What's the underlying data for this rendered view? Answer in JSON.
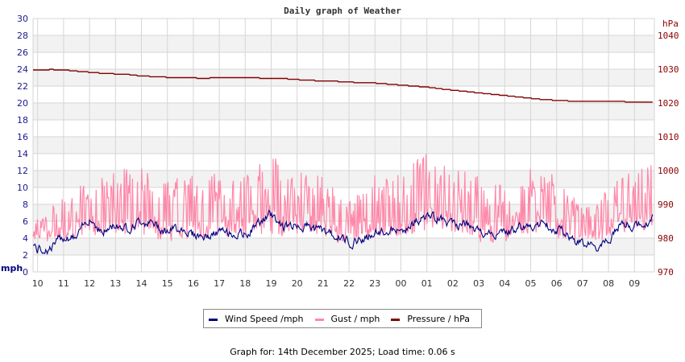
{
  "chart_data": {
    "type": "line",
    "title": "Daily graph of Weather",
    "xlabel": "",
    "ylabel": "mph",
    "ylabel_right": "hPa",
    "ylim": [
      0,
      30
    ],
    "ylim_right": [
      970,
      1045
    ],
    "grid": true,
    "legend_position": "bottom",
    "x_tick_labels": [
      "10",
      "11",
      "12",
      "13",
      "14",
      "15",
      "16",
      "17",
      "18",
      "19",
      "20",
      "21",
      "22",
      "23",
      "00",
      "01",
      "02",
      "03",
      "04",
      "05",
      "06",
      "07",
      "08",
      "09"
    ],
    "y_ticks_left": [
      0,
      2,
      4,
      6,
      8,
      10,
      12,
      14,
      16,
      18,
      20,
      22,
      24,
      26,
      28,
      30
    ],
    "y_ticks_right": [
      970,
      980,
      990,
      1000,
      1010,
      1020,
      1030,
      1040
    ],
    "hours_x": [
      9.8,
      10,
      10.5,
      11,
      11.5,
      12,
      12.5,
      13,
      13.5,
      14,
      14.5,
      15,
      15.5,
      16,
      16.5,
      17,
      17.5,
      18,
      18.5,
      19,
      19.5,
      20,
      20.5,
      21,
      21.5,
      22,
      22.5,
      23,
      23.5,
      24,
      24.5,
      25,
      25.5,
      26,
      26.5,
      27,
      27.5,
      28,
      28.5,
      29,
      29.5,
      30,
      30.5,
      31,
      31.5,
      32,
      32.5,
      33,
      33.5,
      33.7
    ],
    "series": [
      {
        "name": "Wind Speed /mph",
        "color": "#000080",
        "axis": "left",
        "values": [
          3.5,
          2.6,
          2.8,
          4.2,
          4.0,
          6.5,
          4.6,
          5.6,
          5.2,
          6.1,
          5.6,
          4.8,
          5.3,
          4.5,
          4.1,
          4.7,
          4.6,
          4.3,
          5.8,
          6.8,
          5.3,
          5.6,
          5.4,
          4.9,
          4.3,
          3.6,
          3.9,
          4.5,
          4.9,
          4.7,
          5.8,
          6.5,
          6.4,
          5.5,
          5.6,
          4.6,
          4.5,
          4.5,
          5.3,
          5.4,
          5.6,
          5.1,
          4.3,
          3.4,
          2.8,
          3.5,
          5.9,
          5.4,
          5.9,
          6.3
        ]
      },
      {
        "name": "Gust / mph",
        "color": "#ff88aa",
        "axis": "left",
        "min_values": [
          3.5,
          3.5,
          3.5,
          4.0,
          4.0,
          4.5,
          4.0,
          4.5,
          4.5,
          4.5,
          4.0,
          3.5,
          4.0,
          3.5,
          3.5,
          4.0,
          4.0,
          4.0,
          4.5,
          4.5,
          4.0,
          4.5,
          4.5,
          4.0,
          3.5,
          3.5,
          3.5,
          4.0,
          4.0,
          4.0,
          4.5,
          5.0,
          5.0,
          4.5,
          4.5,
          3.5,
          3.5,
          3.5,
          4.5,
          4.5,
          4.5,
          4.0,
          3.5,
          3.5,
          3.5,
          3.5,
          4.5,
          4.5,
          4.5,
          4.5
        ],
        "max_values": [
          8.0,
          7.0,
          8.0,
          9.0,
          10.0,
          11.5,
          11.5,
          12.0,
          12.5,
          13.5,
          11.5,
          11.5,
          11.0,
          11.5,
          12.5,
          11.5,
          12.0,
          11.5,
          12.5,
          15.0,
          11.5,
          12.0,
          11.5,
          11.5,
          10.0,
          9.0,
          10.5,
          11.5,
          11.5,
          11.5,
          13.0,
          15.0,
          13.5,
          12.0,
          12.5,
          11.5,
          10.0,
          11.5,
          12.0,
          12.5,
          12.0,
          11.5,
          9.5,
          7.5,
          8.0,
          11.5,
          12.0,
          12.0,
          12.5,
          14.0
        ]
      },
      {
        "name": "Pressure / hPa",
        "color": "#800000",
        "axis": "right",
        "values": [
          1029.7,
          1029.7,
          1029.9,
          1029.8,
          1029.4,
          1029.1,
          1028.8,
          1028.6,
          1028.4,
          1028.0,
          1027.8,
          1027.6,
          1027.5,
          1027.4,
          1027.3,
          1027.6,
          1027.6,
          1027.6,
          1027.4,
          1027.2,
          1027.2,
          1026.9,
          1026.7,
          1026.5,
          1026.4,
          1026.2,
          1026.0,
          1025.9,
          1025.6,
          1025.3,
          1025.0,
          1024.7,
          1024.2,
          1023.8,
          1023.4,
          1023.0,
          1022.6,
          1022.2,
          1021.8,
          1021.4,
          1021.0,
          1020.8,
          1020.6,
          1020.5,
          1020.6,
          1020.5,
          1020.4,
          1020.3,
          1020.3,
          1020.3
        ]
      }
    ]
  },
  "legend": {
    "items": [
      {
        "label": "Wind Speed /mph",
        "color": "#000080"
      },
      {
        "label": "Gust / mph",
        "color": "#ff88aa"
      },
      {
        "label": "Pressure / hPa",
        "color": "#800000"
      }
    ]
  },
  "footer": {
    "text": "Graph for: 14th December 2025; Load time: 0.06 s"
  }
}
